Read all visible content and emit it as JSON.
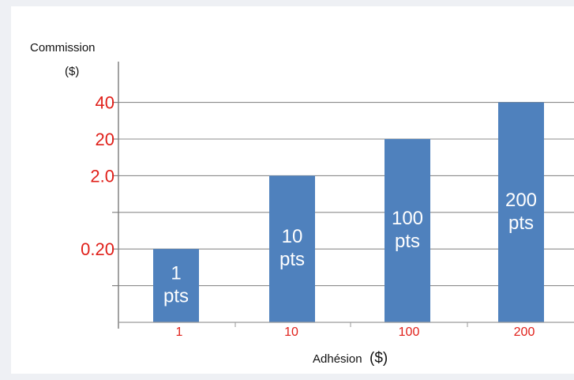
{
  "chart_data": {
    "type": "bar",
    "ylabel": "Commission",
    "ylabel_unit": "($)",
    "xlabel": "Adhésion",
    "xlabel_unit": "($)",
    "categories": [
      "1",
      "10",
      "100",
      "200"
    ],
    "values": [
      0.2,
      2.0,
      20,
      40
    ],
    "bar_labels": [
      [
        "1",
        "pts"
      ],
      [
        "10",
        "pts"
      ],
      [
        "100",
        "pts"
      ],
      [
        "200",
        "pts"
      ]
    ],
    "ytick_labels": [
      "40",
      "20",
      "2.0",
      "0.20"
    ],
    "ytick_values": [
      40,
      20,
      2.0,
      0.2
    ],
    "grid": true,
    "colors": {
      "bar": "#4f81bd",
      "tick_label": "#e0201a",
      "gridline": "#8c8c8c"
    }
  }
}
